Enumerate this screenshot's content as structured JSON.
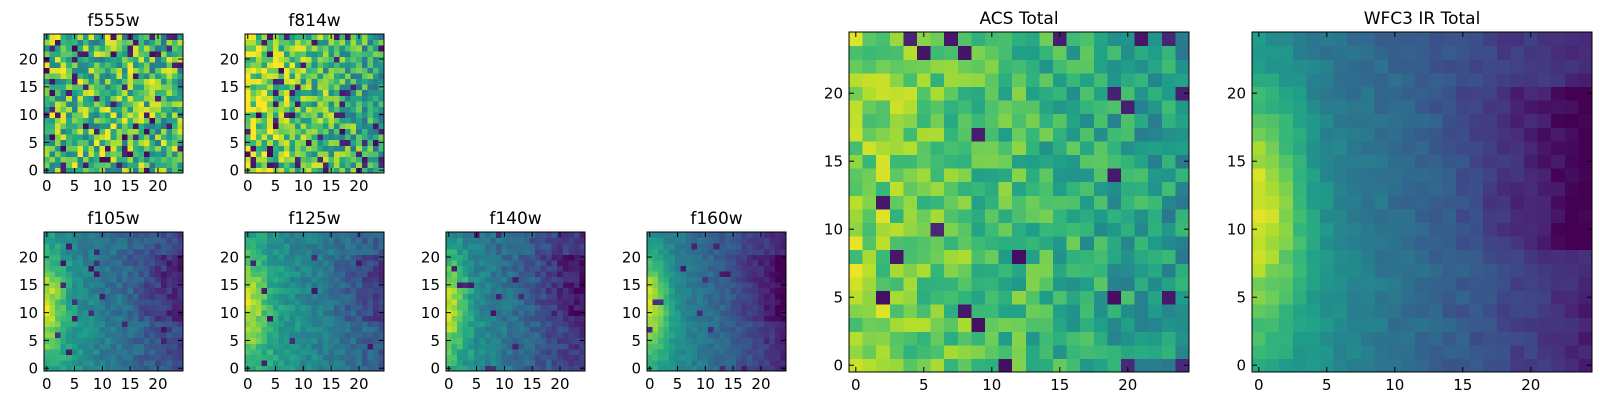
{
  "chart_data": [
    {
      "type": "heatmap",
      "title": "f555w",
      "xlim": [
        -0.5,
        24.5
      ],
      "ylim": [
        -0.5,
        24.5
      ],
      "xticks": [
        0,
        5,
        10,
        15,
        20
      ],
      "yticks": [
        0,
        5,
        10,
        15,
        20
      ],
      "colormap": "viridis",
      "pattern": "noise",
      "mean": 0.7,
      "gradient": 0.05,
      "amp": 0.3,
      "dark_fraction": 0.1,
      "seed": 11
    },
    {
      "type": "heatmap",
      "title": "f814w",
      "xlim": [
        -0.5,
        24.5
      ],
      "ylim": [
        -0.5,
        24.5
      ],
      "xticks": [
        0,
        5,
        10,
        15,
        20
      ],
      "yticks": [
        0,
        5,
        10,
        15,
        20
      ],
      "colormap": "viridis",
      "pattern": "noise",
      "mean": 0.72,
      "gradient": 0.25,
      "amp": 0.25,
      "dark_fraction": 0.08,
      "seed": 23
    },
    {
      "type": "heatmap",
      "title": "f105w",
      "xlim": [
        -0.5,
        24.5
      ],
      "ylim": [
        -0.5,
        24.5
      ],
      "xticks": [
        0,
        5,
        10,
        15,
        20
      ],
      "yticks": [
        0,
        5,
        10,
        15,
        20
      ],
      "colormap": "viridis",
      "pattern": "gradient",
      "peak": 0.95,
      "low": 0.2,
      "amp": 0.08,
      "dark_fraction": 0.04,
      "seed": 31
    },
    {
      "type": "heatmap",
      "title": "f125w",
      "xlim": [
        -0.5,
        24.5
      ],
      "ylim": [
        -0.5,
        24.5
      ],
      "xticks": [
        0,
        5,
        10,
        15,
        20
      ],
      "yticks": [
        0,
        5,
        10,
        15,
        20
      ],
      "colormap": "viridis",
      "pattern": "gradient",
      "peak": 0.95,
      "low": 0.28,
      "amp": 0.08,
      "dark_fraction": 0.02,
      "seed": 47
    },
    {
      "type": "heatmap",
      "title": "f140w",
      "xlim": [
        -0.5,
        24.5
      ],
      "ylim": [
        -0.5,
        24.5
      ],
      "xticks": [
        0,
        5,
        10,
        15,
        20
      ],
      "yticks": [
        0,
        5,
        10,
        15,
        20
      ],
      "colormap": "viridis",
      "pattern": "gradient",
      "peak": 0.95,
      "low": 0.15,
      "amp": 0.08,
      "dark_fraction": 0.03,
      "seed": 59
    },
    {
      "type": "heatmap",
      "title": "f160w",
      "xlim": [
        -0.5,
        24.5
      ],
      "ylim": [
        -0.5,
        24.5
      ],
      "xticks": [
        0,
        5,
        10,
        15,
        20
      ],
      "yticks": [
        0,
        5,
        10,
        15,
        20
      ],
      "colormap": "viridis",
      "pattern": "gradient",
      "peak": 0.97,
      "low": 0.12,
      "amp": 0.05,
      "dark_fraction": 0.02,
      "seed": 67
    },
    {
      "type": "heatmap",
      "title": "ACS Total",
      "xlim": [
        -0.5,
        24.5
      ],
      "ylim": [
        -0.5,
        24.5
      ],
      "xticks": [
        0,
        5,
        10,
        15,
        20
      ],
      "yticks": [
        0,
        5,
        10,
        15,
        20
      ],
      "colormap": "viridis",
      "pattern": "noise",
      "mean": 0.68,
      "gradient": 0.3,
      "amp": 0.15,
      "dark_fraction": 0.035,
      "seed": 83
    },
    {
      "type": "heatmap",
      "title": "WFC3 IR Total",
      "xlim": [
        -0.5,
        24.5
      ],
      "ylim": [
        -0.5,
        24.5
      ],
      "xticks": [
        0,
        5,
        10,
        15,
        20
      ],
      "yticks": [
        0,
        5,
        10,
        15,
        20
      ],
      "colormap": "viridis",
      "pattern": "gradient",
      "peak": 0.98,
      "low": 0.1,
      "amp": 0.04,
      "dark_fraction": 0.0,
      "seed": 97
    }
  ]
}
